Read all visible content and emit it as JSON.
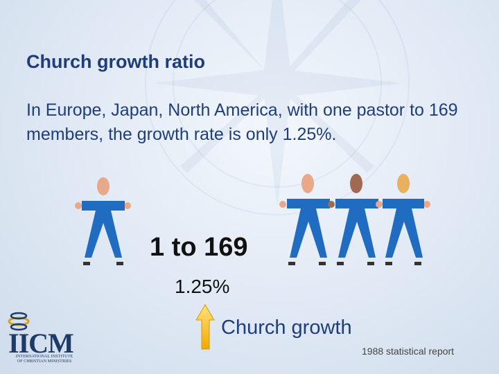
{
  "slide": {
    "title": "Church growth ratio",
    "body": "In Europe, Japan, North America, with one pastor to 169 members, the growth rate is only 1.25%.",
    "ratio_label": "1 to 169",
    "growth_percent": "1.25%",
    "growth_label": "Church growth",
    "source_note": "1988 statistical report"
  },
  "logo": {
    "name": "IICM",
    "subtitle_line1": "INTERNATIONAL INSTITUTE",
    "subtitle_line2": "OF CHRISTIAN MINISTRIES"
  },
  "colors": {
    "title": "#1f3d7a",
    "shirt": "#1f6cc0",
    "skin": "#e8a88a",
    "hair_brown": "#a06a50",
    "hair_blond": "#e8b060",
    "arrow": "#f2b300"
  }
}
